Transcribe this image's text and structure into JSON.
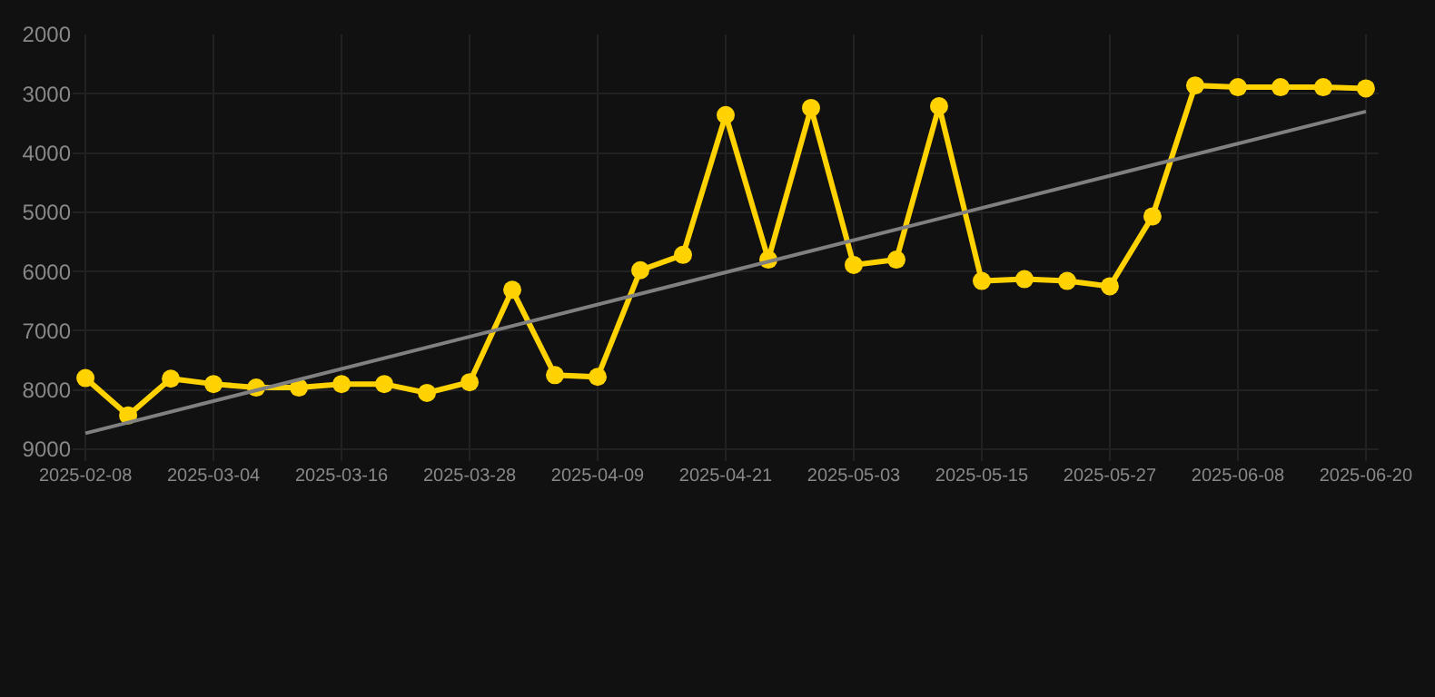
{
  "chart_data": {
    "type": "line",
    "categories": [
      "2025-02-08",
      null,
      null,
      "2025-03-04",
      null,
      null,
      "2025-03-16",
      null,
      null,
      "2025-03-28",
      null,
      null,
      "2025-04-09",
      null,
      null,
      "2025-04-21",
      null,
      null,
      "2025-05-03",
      null,
      null,
      "2025-05-15",
      null,
      null,
      "2025-05-27",
      null,
      null,
      "2025-06-08",
      null,
      null,
      "2025-06-20"
    ],
    "series": [
      {
        "color": "#ffd200",
        "marker": "circle",
        "values": [
          7800,
          8430,
          7810,
          7900,
          7960,
          7960,
          7900,
          7900,
          8050,
          7870,
          6310,
          7750,
          7780,
          5980,
          5720,
          3360,
          5800,
          3240,
          5890,
          5800,
          3210,
          6160,
          6130,
          6160,
          6250,
          5070,
          2860,
          2890,
          2890,
          2890,
          2910
        ]
      },
      {
        "type": "line",
        "color": "#808080",
        "marker": "none",
        "values": [
          8730,
          null,
          null,
          null,
          null,
          null,
          null,
          null,
          null,
          null,
          null,
          null,
          null,
          null,
          null,
          null,
          null,
          null,
          null,
          null,
          null,
          null,
          null,
          null,
          null,
          null,
          null,
          null,
          null,
          null,
          3300
        ]
      }
    ],
    "ylim": [
      9200,
      2000
    ],
    "yticks": [
      2000,
      3000,
      4000,
      5000,
      6000,
      7000,
      8000,
      9000
    ],
    "grid": true
  }
}
